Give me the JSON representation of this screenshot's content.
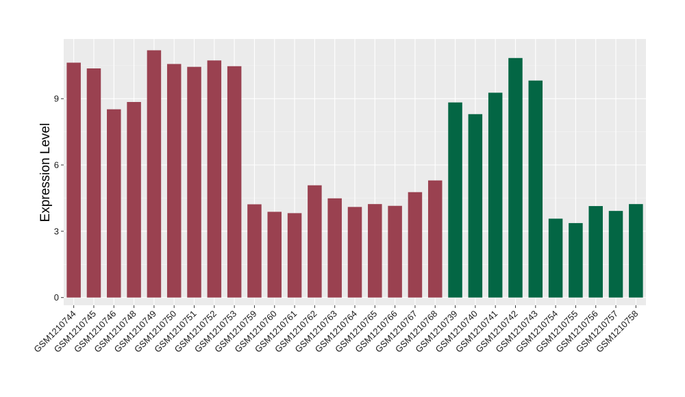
{
  "chart_data": {
    "type": "bar",
    "title": "",
    "xlabel": "",
    "ylabel": "Expression Level",
    "ylim": [
      -0.35,
      11.7
    ],
    "yticks": [
      0,
      3,
      6,
      9
    ],
    "grid": true,
    "legend": "none",
    "categories": [
      "GSM1210744",
      "GSM1210745",
      "GSM1210746",
      "GSM1210748",
      "GSM1210749",
      "GSM1210750",
      "GSM1210751",
      "GSM1210752",
      "GSM1210753",
      "GSM1210759",
      "GSM1210760",
      "GSM1210761",
      "GSM1210762",
      "GSM1210763",
      "GSM1210764",
      "GSM1210765",
      "GSM1210766",
      "GSM1210767",
      "GSM1210768",
      "GSM1210739",
      "GSM1210740",
      "GSM1210741",
      "GSM1210742",
      "GSM1210743",
      "GSM1210754",
      "GSM1210755",
      "GSM1210756",
      "GSM1210757",
      "GSM1210758"
    ],
    "values": [
      10.63,
      10.37,
      8.52,
      8.85,
      11.19,
      10.57,
      10.44,
      10.73,
      10.47,
      4.22,
      3.88,
      3.82,
      5.08,
      4.49,
      4.1,
      4.23,
      4.15,
      4.77,
      5.3,
      8.83,
      8.3,
      9.27,
      10.84,
      9.82,
      3.57,
      3.37,
      4.14,
      3.92,
      4.23
    ],
    "groups": [
      "a",
      "a",
      "a",
      "a",
      "a",
      "a",
      "a",
      "a",
      "a",
      "a",
      "a",
      "a",
      "a",
      "a",
      "a",
      "a",
      "a",
      "a",
      "a",
      "b",
      "b",
      "b",
      "b",
      "b",
      "b",
      "b",
      "b",
      "b",
      "b"
    ],
    "colors": {
      "a": "#9a4150",
      "b": "#036644"
    }
  }
}
